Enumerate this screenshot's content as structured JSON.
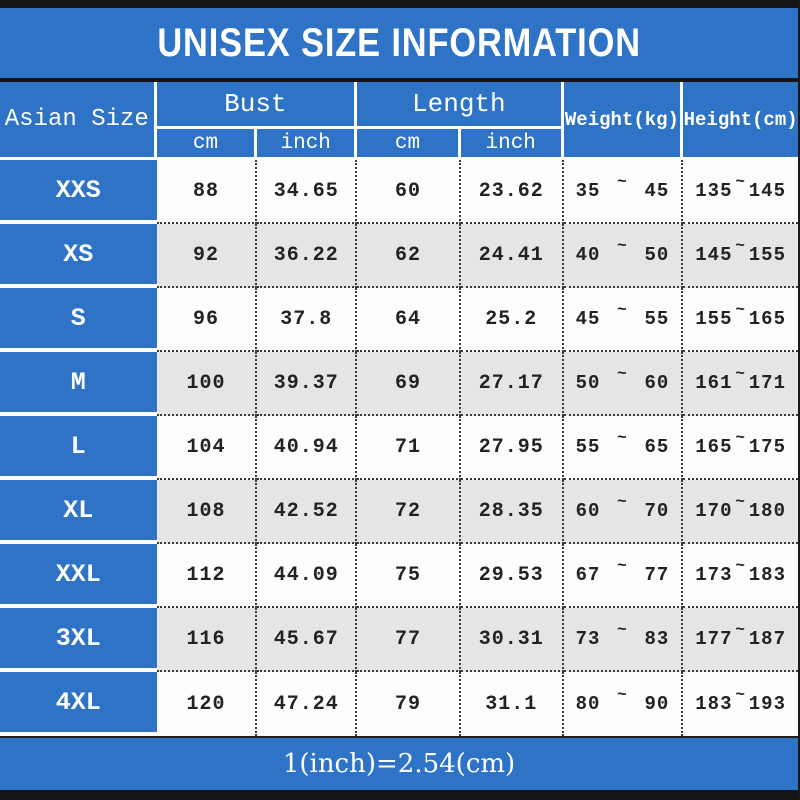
{
  "title": "UNISEX SIZE INFORMATION",
  "header": {
    "size_column": "Asian Size",
    "bust": {
      "label": "Bust",
      "units": [
        "cm",
        "inch"
      ]
    },
    "length": {
      "label": "Length",
      "units": [
        "cm",
        "inch"
      ]
    },
    "weight": "Weight(kg)",
    "height": "Height(cm)"
  },
  "tilde": "~",
  "rows": [
    {
      "size": "XXS",
      "bust_cm": "88",
      "bust_inch": "34.65",
      "length_cm": "60",
      "length_inch": "23.62",
      "weight_min": "35",
      "weight_max": "45",
      "height_min": "135",
      "height_max": "145"
    },
    {
      "size": "XS",
      "bust_cm": "92",
      "bust_inch": "36.22",
      "length_cm": "62",
      "length_inch": "24.41",
      "weight_min": "40",
      "weight_max": "50",
      "height_min": "145",
      "height_max": "155"
    },
    {
      "size": "S",
      "bust_cm": "96",
      "bust_inch": "37.8",
      "length_cm": "64",
      "length_inch": "25.2",
      "weight_min": "45",
      "weight_max": "55",
      "height_min": "155",
      "height_max": "165"
    },
    {
      "size": "M",
      "bust_cm": "100",
      "bust_inch": "39.37",
      "length_cm": "69",
      "length_inch": "27.17",
      "weight_min": "50",
      "weight_max": "60",
      "height_min": "161",
      "height_max": "171"
    },
    {
      "size": "L",
      "bust_cm": "104",
      "bust_inch": "40.94",
      "length_cm": "71",
      "length_inch": "27.95",
      "weight_min": "55",
      "weight_max": "65",
      "height_min": "165",
      "height_max": "175"
    },
    {
      "size": "XL",
      "bust_cm": "108",
      "bust_inch": "42.52",
      "length_cm": "72",
      "length_inch": "28.35",
      "weight_min": "60",
      "weight_max": "70",
      "height_min": "170",
      "height_max": "180"
    },
    {
      "size": "XXL",
      "bust_cm": "112",
      "bust_inch": "44.09",
      "length_cm": "75",
      "length_inch": "29.53",
      "weight_min": "67",
      "weight_max": "77",
      "height_min": "173",
      "height_max": "183"
    },
    {
      "size": "3XL",
      "bust_cm": "116",
      "bust_inch": "45.67",
      "length_cm": "77",
      "length_inch": "30.31",
      "weight_min": "73",
      "weight_max": "83",
      "height_min": "177",
      "height_max": "187"
    },
    {
      "size": "4XL",
      "bust_cm": "120",
      "bust_inch": "47.24",
      "length_cm": "79",
      "length_inch": "31.1",
      "weight_min": "80",
      "weight_max": "90",
      "height_min": "183",
      "height_max": "193"
    }
  ],
  "footer": "1(inch)=2.54(cm)",
  "colors": {
    "blue": "#2e73c6",
    "row_shade": "#e7e4e5",
    "row_plain": "#fdfdfd",
    "border_bar": "#151515",
    "dotted_line": "#3b3b3b",
    "header_text": "#ffffff",
    "value_text": "#222222"
  },
  "chart_data": {
    "type": "table",
    "title": "UNISEX SIZE INFORMATION",
    "columns": [
      "Asian Size",
      "Bust cm",
      "Bust inch",
      "Length cm",
      "Length inch",
      "Weight(kg)",
      "Height(cm)"
    ],
    "rows": [
      [
        "XXS",
        "88",
        "34.65",
        "60",
        "23.62",
        "35~45",
        "135~145"
      ],
      [
        "XS",
        "92",
        "36.22",
        "62",
        "24.41",
        "40~50",
        "145~155"
      ],
      [
        "S",
        "96",
        "37.8",
        "64",
        "25.2",
        "45~55",
        "155~165"
      ],
      [
        "M",
        "100",
        "39.37",
        "69",
        "27.17",
        "50~60",
        "161~171"
      ],
      [
        "L",
        "104",
        "40.94",
        "71",
        "27.95",
        "55~65",
        "165~175"
      ],
      [
        "XL",
        "108",
        "42.52",
        "72",
        "28.35",
        "60~70",
        "170~180"
      ],
      [
        "XXL",
        "112",
        "44.09",
        "75",
        "29.53",
        "67~77",
        "173~183"
      ],
      [
        "3XL",
        "116",
        "45.67",
        "77",
        "30.31",
        "73~83",
        "177~187"
      ],
      [
        "4XL",
        "120",
        "47.24",
        "79",
        "31.1",
        "80~90",
        "183~193"
      ]
    ],
    "note": "1(inch)=2.54(cm)"
  }
}
